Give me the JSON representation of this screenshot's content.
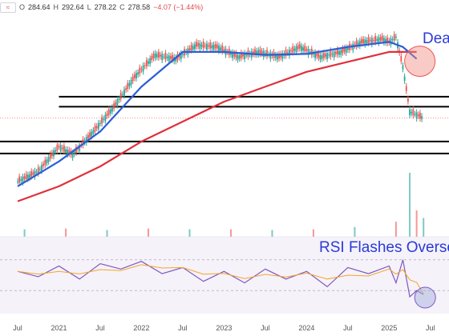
{
  "header": {
    "open_label": "O",
    "open": "284.64",
    "high_label": "H",
    "high": "292.64",
    "low_label": "L",
    "low": "278.22",
    "close_label": "C",
    "close": "278.58",
    "change": "−4.07 (−1.44%)",
    "chip_icon": "≈"
  },
  "annotations": {
    "top_text": "Dea",
    "rsi_text": "RSI Flashes Overso"
  },
  "colors": {
    "up": "#26a69a",
    "down": "#ef5350",
    "ma_fast": "#2a5ed8",
    "ma_slow": "#e0303a",
    "rsi": "#7e57c2",
    "rsi_signal": "#f5a623",
    "highlight": "#f28b82",
    "annotation": "#2b3ad6"
  },
  "chart_data": {
    "type": "line",
    "x_tick_labels": [
      "Jul",
      "2021",
      "Jul",
      "2022",
      "Jul",
      "2023",
      "Jul",
      "2024",
      "Jul",
      "2025",
      "Jul"
    ],
    "x": [
      "2020-07",
      "2021-01",
      "2021-07",
      "2022-01",
      "2022-07",
      "2023-01",
      "2023-07",
      "2024-01",
      "2024-07",
      "2025-01",
      "2025-07"
    ],
    "price_series": [
      {
        "date": "2020-07",
        "close": 215
      },
      {
        "date": "2020-10",
        "close": 225
      },
      {
        "date": "2021-01",
        "close": 250
      },
      {
        "date": "2021-03",
        "close": 242
      },
      {
        "date": "2021-06",
        "close": 265
      },
      {
        "date": "2021-09",
        "close": 290
      },
      {
        "date": "2021-12",
        "close": 320
      },
      {
        "date": "2022-03",
        "close": 342
      },
      {
        "date": "2022-06",
        "close": 338
      },
      {
        "date": "2022-09",
        "close": 352
      },
      {
        "date": "2022-12",
        "close": 350
      },
      {
        "date": "2023-03",
        "close": 340
      },
      {
        "date": "2023-06",
        "close": 345
      },
      {
        "date": "2023-09",
        "close": 340
      },
      {
        "date": "2023-12",
        "close": 350
      },
      {
        "date": "2024-03",
        "close": 340
      },
      {
        "date": "2024-06",
        "close": 345
      },
      {
        "date": "2024-09",
        "close": 355
      },
      {
        "date": "2024-12",
        "close": 358
      },
      {
        "date": "2025-01",
        "close": 355
      },
      {
        "date": "2025-02",
        "close": 360
      },
      {
        "date": "2025-03",
        "close": 330
      },
      {
        "date": "2025-04",
        "close": 285
      },
      {
        "date": "2025-05",
        "close": 282
      },
      {
        "date": "2025-06",
        "close": 278.58
      }
    ],
    "ma_fast": [
      {
        "date": "2020-07",
        "value": 210
      },
      {
        "date": "2021-01",
        "value": 235
      },
      {
        "date": "2021-07",
        "value": 265
      },
      {
        "date": "2022-01",
        "value": 310
      },
      {
        "date": "2022-07",
        "value": 345
      },
      {
        "date": "2023-01",
        "value": 345
      },
      {
        "date": "2023-07",
        "value": 342
      },
      {
        "date": "2024-01",
        "value": 343
      },
      {
        "date": "2024-07",
        "value": 350
      },
      {
        "date": "2025-01",
        "value": 355
      },
      {
        "date": "2025-03",
        "value": 350
      },
      {
        "date": "2025-05",
        "value": 338
      }
    ],
    "ma_slow": [
      {
        "date": "2020-07",
        "value": 195
      },
      {
        "date": "2021-01",
        "value": 210
      },
      {
        "date": "2021-07",
        "value": 230
      },
      {
        "date": "2022-01",
        "value": 255
      },
      {
        "date": "2022-07",
        "value": 275
      },
      {
        "date": "2023-01",
        "value": 295
      },
      {
        "date": "2023-07",
        "value": 310
      },
      {
        "date": "2024-01",
        "value": 325
      },
      {
        "date": "2024-07",
        "value": 335
      },
      {
        "date": "2025-01",
        "value": 345
      },
      {
        "date": "2025-05",
        "value": 345
      }
    ],
    "horizontal_levels": [
      {
        "price": 300,
        "from": "2021-01"
      },
      {
        "price": 290,
        "from": "2021-01"
      },
      {
        "price": 255,
        "from": "2020-07"
      },
      {
        "price": 243,
        "from": "2020-07"
      }
    ],
    "volume": [
      {
        "date": "2020-08",
        "value": 1.0
      },
      {
        "date": "2021-02",
        "value": 1.1
      },
      {
        "date": "2021-08",
        "value": 0.9
      },
      {
        "date": "2022-02",
        "value": 1.1
      },
      {
        "date": "2022-08",
        "value": 1.0
      },
      {
        "date": "2023-02",
        "value": 1.0
      },
      {
        "date": "2023-08",
        "value": 0.9
      },
      {
        "date": "2024-02",
        "value": 1.0
      },
      {
        "date": "2024-08",
        "value": 1.3
      },
      {
        "date": "2025-02",
        "value": 2.0
      },
      {
        "date": "2025-04",
        "value": 8.5
      },
      {
        "date": "2025-05",
        "value": 3.5
      },
      {
        "date": "2025-06",
        "value": 2.5
      }
    ],
    "rsi": [
      {
        "date": "2020-07",
        "value": 55
      },
      {
        "date": "2020-10",
        "value": 48
      },
      {
        "date": "2021-01",
        "value": 62
      },
      {
        "date": "2021-04",
        "value": 45
      },
      {
        "date": "2021-07",
        "value": 65
      },
      {
        "date": "2021-10",
        "value": 58
      },
      {
        "date": "2022-01",
        "value": 68
      },
      {
        "date": "2022-04",
        "value": 52
      },
      {
        "date": "2022-07",
        "value": 60
      },
      {
        "date": "2022-10",
        "value": 42
      },
      {
        "date": "2023-01",
        "value": 55
      },
      {
        "date": "2023-04",
        "value": 40
      },
      {
        "date": "2023-07",
        "value": 58
      },
      {
        "date": "2023-10",
        "value": 45
      },
      {
        "date": "2024-01",
        "value": 55
      },
      {
        "date": "2024-04",
        "value": 35
      },
      {
        "date": "2024-07",
        "value": 60
      },
      {
        "date": "2024-10",
        "value": 52
      },
      {
        "date": "2025-01",
        "value": 62
      },
      {
        "date": "2025-02",
        "value": 40
      },
      {
        "date": "2025-03",
        "value": 70
      },
      {
        "date": "2025-04",
        "value": 22
      },
      {
        "date": "2025-05",
        "value": 30
      },
      {
        "date": "2025-06",
        "value": 25
      }
    ],
    "rsi_levels": [
      70,
      30
    ],
    "grid": false,
    "legend": "none"
  }
}
